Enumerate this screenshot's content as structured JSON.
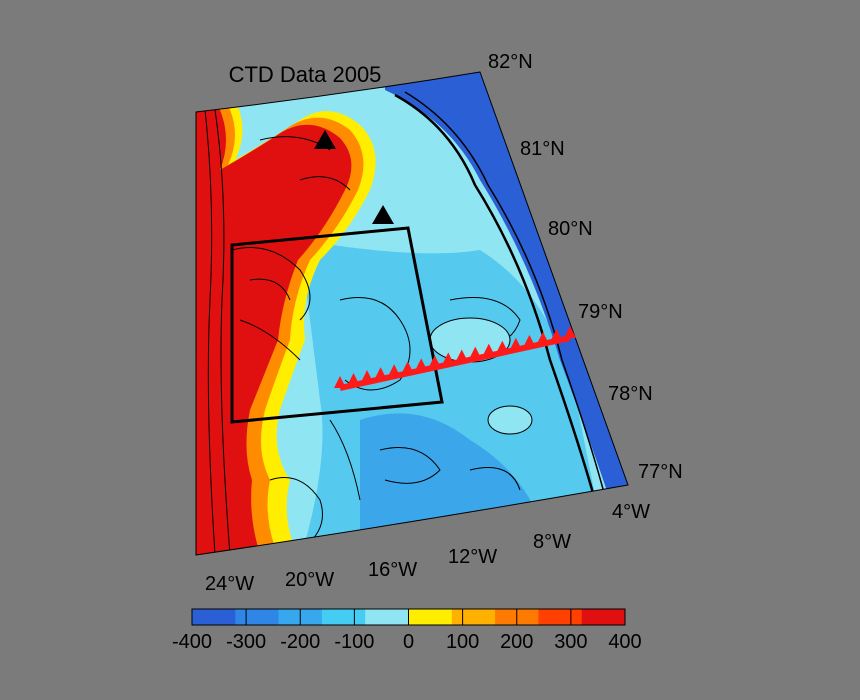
{
  "map": {
    "title": "CTD Data 2005",
    "lat_labels": [
      "82°N",
      "81°N",
      "80°N",
      "79°N",
      "78°N",
      "77°N"
    ],
    "lon_labels": [
      "24°W",
      "20°W",
      "16°W",
      "12°W",
      "8°W",
      "4°W"
    ],
    "markers": {
      "stations": 2,
      "transect_points": 18,
      "box": true
    },
    "colors": {
      "deep": "#2a5fd6",
      "mid": "#3fb8e6",
      "shallow": "#8fe6f2",
      "land_low": "#ffee00",
      "land_mid": "#ff9900",
      "land_high": "#e01010",
      "transect": "#ff1a1a",
      "background": "#7b7b7b"
    }
  },
  "colorbar": {
    "ticks": [
      "-400",
      "-300",
      "-200",
      "-100",
      "0",
      "100",
      "200",
      "300",
      "400"
    ],
    "colors": [
      "#2a5fd6",
      "#2f86e6",
      "#37a8ee",
      "#44ccf2",
      "#8fe6f2",
      "#ffee00",
      "#ffb000",
      "#ff7a00",
      "#ff4000",
      "#e01010"
    ]
  }
}
